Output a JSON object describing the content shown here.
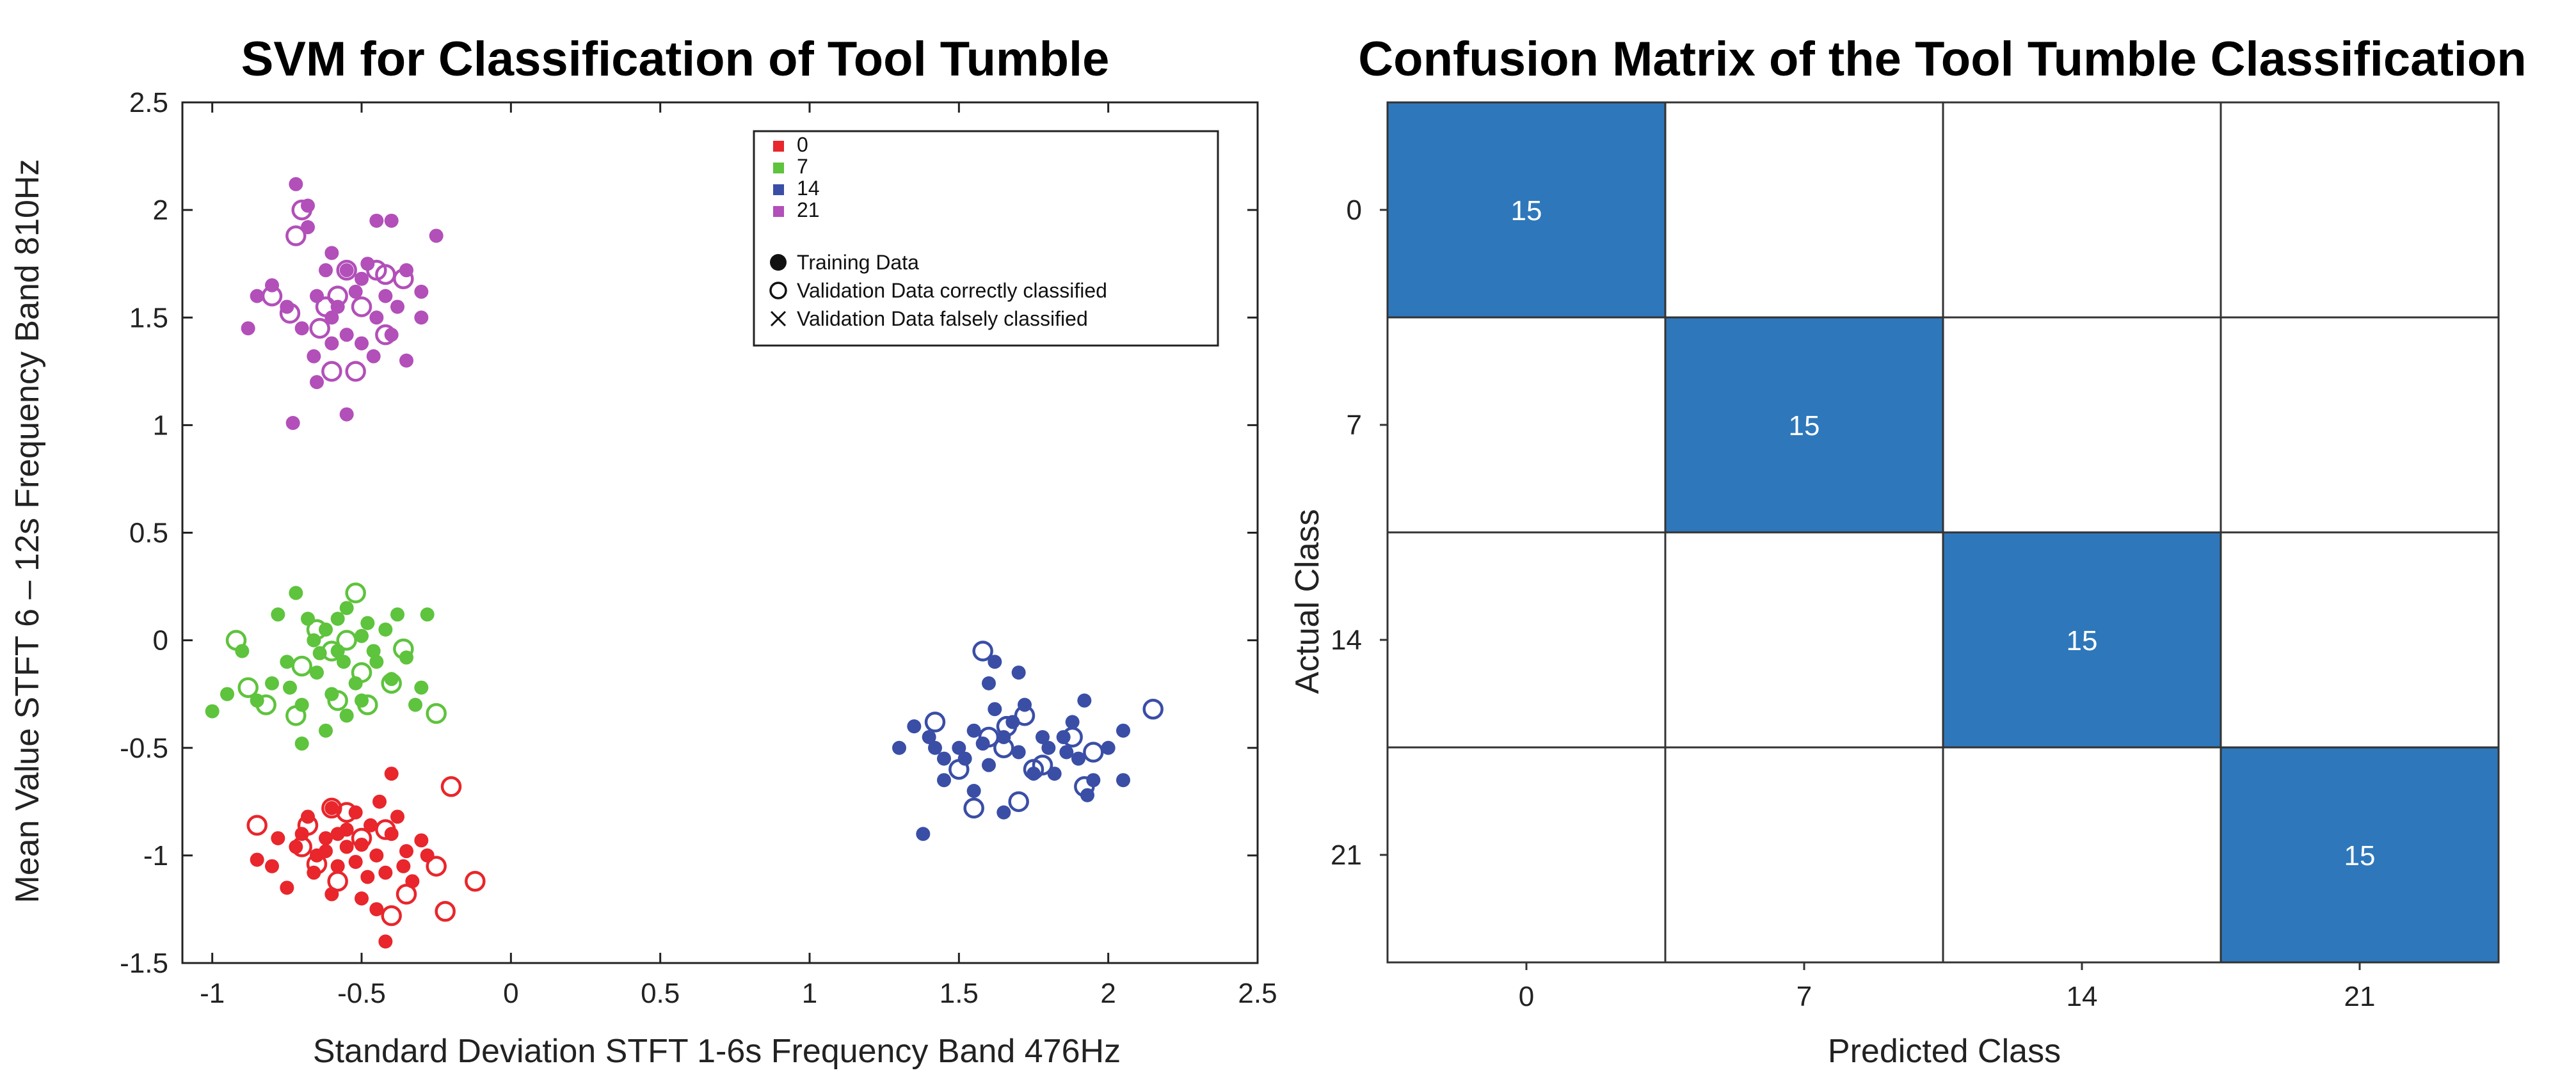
{
  "chart_data": [
    {
      "type": "scatter",
      "title": "SVM for Classification of Tool Tumble",
      "xlabel": "Standard Deviation STFT 1-6s Frequency Band 476Hz",
      "ylabel": "Mean Value STFT 6 – 12s Frequency Band 810Hz",
      "xlim": [
        -1.1,
        2.5
      ],
      "ylim": [
        -1.5,
        2.5
      ],
      "xticks": [
        -1,
        -0.5,
        0,
        0.5,
        1,
        1.5,
        2,
        2.5
      ],
      "xtick_labels": [
        "-1",
        "-0.5",
        "0",
        "0.5",
        "1",
        "1.5",
        "2",
        "2.5"
      ],
      "yticks": [
        -1.5,
        -1,
        -0.5,
        0,
        0.5,
        1,
        1.5,
        2,
        2.5
      ],
      "ytick_labels": [
        "-1.5",
        "-1",
        "-0.5",
        "0",
        "0.5",
        "1",
        "1.5",
        "2",
        "2.5"
      ],
      "legend": {
        "position": "top-right",
        "classes": [
          {
            "label": "0",
            "color": "#e8262b"
          },
          {
            "label": "7",
            "color": "#5ec33d"
          },
          {
            "label": "14",
            "color": "#3a4ea6"
          },
          {
            "label": "21",
            "color": "#b24fb9"
          }
        ],
        "markers": [
          {
            "symbol": "filled-circle",
            "label": "Training Data"
          },
          {
            "symbol": "open-circle",
            "label": "Validation Data correctly classified"
          },
          {
            "symbol": "cross",
            "label": "Validation Data falsely classified"
          }
        ]
      },
      "series": [
        {
          "name": "0",
          "color": "#e8262b",
          "training": [
            [
              -0.62,
              -0.92
            ],
            [
              -0.55,
              -0.88
            ],
            [
              -0.5,
              -0.95
            ],
            [
              -0.45,
              -1.0
            ],
            [
              -0.4,
              -0.9
            ],
            [
              -0.35,
              -0.98
            ],
            [
              -0.3,
              -0.93
            ],
            [
              -0.42,
              -1.08
            ],
            [
              -0.48,
              -1.1
            ],
            [
              -0.58,
              -1.05
            ],
            [
              -0.65,
              -1.0
            ],
            [
              -0.7,
              -0.9
            ],
            [
              -0.75,
              -1.15
            ],
            [
              -0.8,
              -1.05
            ],
            [
              -0.68,
              -0.82
            ],
            [
              -0.6,
              -0.78
            ],
            [
              -0.52,
              -0.8
            ],
            [
              -0.44,
              -0.75
            ],
            [
              -0.4,
              -0.62
            ],
            [
              -0.38,
              -0.82
            ],
            [
              -0.33,
              -1.12
            ],
            [
              -0.28,
              -1.0
            ],
            [
              -0.5,
              -1.2
            ],
            [
              -0.6,
              -1.18
            ],
            [
              -0.45,
              -1.25
            ],
            [
              -0.55,
              -0.96
            ],
            [
              -0.62,
              -0.98
            ],
            [
              -0.47,
              -0.86
            ],
            [
              -0.36,
              -1.05
            ],
            [
              -0.72,
              -0.96
            ],
            [
              -0.78,
              -0.92
            ],
            [
              -0.85,
              -1.02
            ],
            [
              -0.42,
              -1.4
            ],
            [
              -0.52,
              -1.03
            ],
            [
              -0.58,
              -0.9
            ],
            [
              -0.66,
              -1.08
            ]
          ],
          "validation_correct": [
            [
              -0.85,
              -0.86
            ],
            [
              -0.2,
              -0.68
            ],
            [
              -0.68,
              -0.86
            ],
            [
              -0.55,
              -0.8
            ],
            [
              -0.42,
              -0.88
            ],
            [
              -0.65,
              -1.04
            ],
            [
              -0.58,
              -1.12
            ],
            [
              -0.25,
              -1.05
            ],
            [
              -0.35,
              -1.18
            ],
            [
              -0.12,
              -1.12
            ],
            [
              -0.4,
              -1.28
            ],
            [
              -0.22,
              -1.26
            ],
            [
              -0.7,
              -0.96
            ],
            [
              -0.6,
              -0.78
            ],
            [
              -0.5,
              -0.92
            ]
          ]
        },
        {
          "name": "7",
          "color": "#5ec33d",
          "training": [
            [
              -0.72,
              0.22
            ],
            [
              -0.68,
              0.1
            ],
            [
              -0.62,
              0.05
            ],
            [
              -0.58,
              -0.05
            ],
            [
              -0.55,
              0.15
            ],
            [
              -0.5,
              0.02
            ],
            [
              -0.45,
              -0.1
            ],
            [
              -0.4,
              -0.18
            ],
            [
              -0.35,
              -0.08
            ],
            [
              -0.3,
              -0.22
            ],
            [
              -0.28,
              0.12
            ],
            [
              -0.65,
              -0.15
            ],
            [
              -0.7,
              -0.3
            ],
            [
              -0.75,
              -0.1
            ],
            [
              -0.8,
              -0.2
            ],
            [
              -0.85,
              -0.28
            ],
            [
              -0.9,
              -0.05
            ],
            [
              -0.95,
              -0.25
            ],
            [
              -1.0,
              -0.33
            ],
            [
              -0.6,
              -0.25
            ],
            [
              -0.55,
              -0.35
            ],
            [
              -0.5,
              -0.28
            ],
            [
              -0.48,
              0.08
            ],
            [
              -0.42,
              0.05
            ],
            [
              -0.66,
              0.0
            ],
            [
              -0.62,
              -0.42
            ],
            [
              -0.7,
              -0.48
            ],
            [
              -0.56,
              -0.1
            ],
            [
              -0.52,
              -0.2
            ],
            [
              -0.38,
              0.12
            ],
            [
              -0.32,
              -0.3
            ],
            [
              -0.78,
              0.12
            ],
            [
              -0.58,
              0.1
            ],
            [
              -0.46,
              -0.05
            ],
            [
              -0.64,
              -0.06
            ],
            [
              -0.74,
              -0.22
            ]
          ],
          "validation_correct": [
            [
              -0.92,
              0.0
            ],
            [
              -0.52,
              0.22
            ],
            [
              -0.55,
              0.0
            ],
            [
              -0.72,
              -0.35
            ],
            [
              -0.25,
              -0.34
            ],
            [
              -0.88,
              -0.22
            ],
            [
              -0.48,
              -0.3
            ],
            [
              -0.6,
              -0.05
            ],
            [
              -0.7,
              -0.12
            ],
            [
              -0.65,
              0.05
            ],
            [
              -0.58,
              -0.28
            ],
            [
              -0.82,
              -0.3
            ],
            [
              -0.4,
              -0.2
            ],
            [
              -0.5,
              -0.15
            ],
            [
              -0.36,
              -0.04
            ]
          ]
        },
        {
          "name": "14",
          "color": "#3a4ea6",
          "training": [
            [
              1.3,
              -0.5
            ],
            [
              1.35,
              -0.4
            ],
            [
              1.4,
              -0.45
            ],
            [
              1.45,
              -0.55
            ],
            [
              1.5,
              -0.5
            ],
            [
              1.55,
              -0.42
            ],
            [
              1.6,
              -0.2
            ],
            [
              1.62,
              -0.1
            ],
            [
              1.65,
              -0.45
            ],
            [
              1.7,
              -0.52
            ],
            [
              1.72,
              -0.3
            ],
            [
              1.75,
              -0.62
            ],
            [
              1.8,
              -0.5
            ],
            [
              1.85,
              -0.45
            ],
            [
              1.88,
              -0.38
            ],
            [
              1.9,
              -0.55
            ],
            [
              1.92,
              -0.28
            ],
            [
              1.95,
              -0.65
            ],
            [
              2.0,
              -0.5
            ],
            [
              2.05,
              -0.42
            ],
            [
              2.05,
              -0.65
            ],
            [
              1.38,
              -0.9
            ],
            [
              1.45,
              -0.65
            ],
            [
              1.55,
              -0.7
            ],
            [
              1.6,
              -0.58
            ],
            [
              1.65,
              -0.8
            ],
            [
              1.7,
              -0.15
            ],
            [
              1.58,
              -0.48
            ],
            [
              1.68,
              -0.38
            ],
            [
              1.78,
              -0.45
            ],
            [
              1.82,
              -0.62
            ],
            [
              1.86,
              -0.52
            ],
            [
              1.93,
              -0.72
            ],
            [
              1.52,
              -0.55
            ],
            [
              1.42,
              -0.5
            ],
            [
              1.62,
              -0.32
            ]
          ],
          "validation_correct": [
            [
              1.42,
              -0.38
            ],
            [
              1.5,
              -0.6
            ],
            [
              1.58,
              -0.05
            ],
            [
              1.6,
              -0.45
            ],
            [
              1.65,
              -0.5
            ],
            [
              1.72,
              -0.35
            ],
            [
              1.75,
              -0.6
            ],
            [
              1.78,
              -0.58
            ],
            [
              1.88,
              -0.45
            ],
            [
              1.92,
              -0.68
            ],
            [
              2.15,
              -0.32
            ],
            [
              1.55,
              -0.78
            ],
            [
              1.7,
              -0.75
            ],
            [
              1.95,
              -0.52
            ],
            [
              1.66,
              -0.4
            ]
          ]
        },
        {
          "name": "21",
          "color": "#b24fb9",
          "training": [
            [
              -0.72,
              2.12
            ],
            [
              -0.68,
              2.02
            ],
            [
              -0.6,
              1.8
            ],
            [
              -0.55,
              1.72
            ],
            [
              -0.5,
              1.68
            ],
            [
              -0.45,
              1.95
            ],
            [
              -0.4,
              1.95
            ],
            [
              -0.35,
              1.72
            ],
            [
              -0.3,
              1.5
            ],
            [
              -0.25,
              1.88
            ],
            [
              -0.65,
              1.6
            ],
            [
              -0.7,
              1.45
            ],
            [
              -0.75,
              1.55
            ],
            [
              -0.8,
              1.65
            ],
            [
              -0.85,
              1.6
            ],
            [
              -0.88,
              1.45
            ],
            [
              -0.6,
              1.38
            ],
            [
              -0.55,
              1.42
            ],
            [
              -0.5,
              1.38
            ],
            [
              -0.45,
              1.5
            ],
            [
              -0.4,
              1.42
            ],
            [
              -0.35,
              1.3
            ],
            [
              -0.65,
              1.2
            ],
            [
              -0.55,
              1.05
            ],
            [
              -0.73,
              1.01
            ],
            [
              -0.58,
              1.55
            ],
            [
              -0.62,
              1.72
            ],
            [
              -0.48,
              1.75
            ],
            [
              -0.42,
              1.6
            ],
            [
              -0.3,
              1.62
            ],
            [
              -0.68,
              1.92
            ],
            [
              -0.52,
              1.62
            ],
            [
              -0.6,
              1.5
            ],
            [
              -0.46,
              1.32
            ],
            [
              -0.66,
              1.32
            ],
            [
              -0.38,
              1.55
            ]
          ],
          "validation_correct": [
            [
              -0.8,
              1.6
            ],
            [
              -0.72,
              1.88
            ],
            [
              -0.7,
              2.0
            ],
            [
              -0.62,
              1.55
            ],
            [
              -0.55,
              1.72
            ],
            [
              -0.45,
              1.72
            ],
            [
              -0.42,
              1.7
            ],
            [
              -0.52,
              1.25
            ],
            [
              -0.42,
              1.42
            ],
            [
              -0.36,
              1.68
            ],
            [
              -0.58,
              1.6
            ],
            [
              -0.6,
              1.25
            ],
            [
              -0.74,
              1.52
            ],
            [
              -0.64,
              1.45
            ],
            [
              -0.5,
              1.55
            ]
          ]
        }
      ]
    },
    {
      "type": "heatmap",
      "title": "Confusion Matrix of the Tool Tumble Classification",
      "xlabel": "Predicted Class",
      "ylabel": "Actual Class",
      "x_categories": [
        "0",
        "7",
        "14",
        "21"
      ],
      "y_categories": [
        "0",
        "7",
        "14",
        "21"
      ],
      "values": [
        [
          15,
          0,
          0,
          0
        ],
        [
          0,
          15,
          0,
          0
        ],
        [
          0,
          0,
          15,
          0
        ],
        [
          0,
          0,
          0,
          15
        ]
      ],
      "labels": [
        [
          "15",
          "",
          "",
          ""
        ],
        [
          "",
          "15",
          "",
          ""
        ],
        [
          "",
          "",
          "15",
          ""
        ],
        [
          "",
          "",
          "",
          "15"
        ]
      ],
      "fill_color": "#2e77bb",
      "empty_color": "#ffffff"
    }
  ]
}
